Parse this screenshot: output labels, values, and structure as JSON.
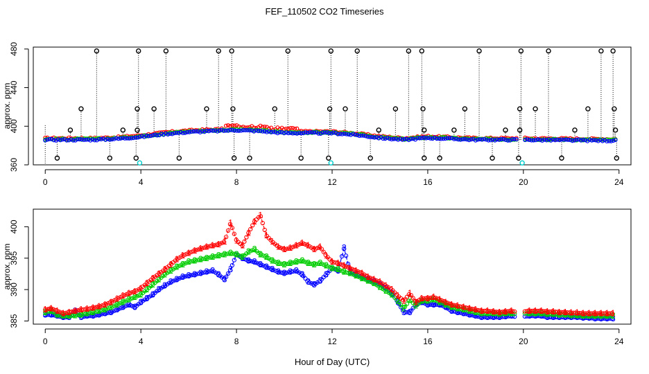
{
  "figure": {
    "title": "FEF_110502  CO2 Timeseries",
    "xlabel": "Hour of Day (UTC)"
  },
  "colors": {
    "series_1": "#ff0000",
    "series_2": "#00cd00",
    "series_3": "#0000ff",
    "spike": "#000000",
    "low": "#00cdcd"
  },
  "chart_data": [
    {
      "type": "scatter",
      "title": "",
      "xlabel": "",
      "ylabel": "approx. ppm",
      "xlim": [
        -0.5,
        24.5
      ],
      "ylim": [
        360,
        482
      ],
      "xticks": [
        0,
        4,
        8,
        12,
        16,
        20,
        24
      ],
      "yticks": [
        360,
        400,
        440,
        480
      ],
      "legend": "none",
      "baseline_anchors": [
        [
          0,
          386
        ],
        [
          2,
          386
        ],
        [
          3,
          387
        ],
        [
          4,
          389
        ],
        [
          5,
          392
        ],
        [
          6,
          394
        ],
        [
          7,
          395
        ],
        [
          8,
          396
        ],
        [
          9,
          395
        ],
        [
          10,
          393
        ],
        [
          11,
          393
        ],
        [
          12,
          393
        ],
        [
          13,
          391
        ],
        [
          14,
          388
        ],
        [
          15,
          386
        ],
        [
          16,
          388
        ],
        [
          17,
          387
        ],
        [
          18,
          386
        ],
        [
          19,
          386
        ],
        [
          19.75,
          386
        ],
        [
          20,
          386
        ],
        [
          24,
          385
        ]
      ],
      "series_offsets": [
        1.5,
        0.6,
        0
      ],
      "spikes_high": [
        2.15,
        3.9,
        5.05,
        7.25,
        7.8,
        10.15,
        11.95,
        13.05,
        15.2,
        15.75,
        18.15,
        19.9,
        21.05,
        23.25,
        23.75
      ],
      "spikes_mid": [
        1.5,
        3.85,
        4.55,
        6.75,
        7.85,
        9.6,
        11.9,
        12.55,
        14.65,
        15.8,
        17.55,
        19.85,
        20.5,
        22.7,
        23.8
      ],
      "spikes_low396": [
        1.05,
        3.25,
        3.85,
        13.95,
        15.85,
        17.1,
        19.25,
        19.85,
        22.15,
        23.85
      ],
      "spikes_down": [
        0.5,
        2.7,
        3.8,
        5.6,
        7.9,
        8.55,
        10.7,
        11.85,
        13.6,
        15.85,
        16.5,
        18.7,
        19.8,
        21.6,
        23.9
      ],
      "low_points": [
        [
          3.95,
          362
        ],
        [
          11.95,
          362
        ],
        [
          19.95,
          362
        ]
      ]
    },
    {
      "type": "line",
      "title": "",
      "xlabel": "Hour of Day (UTC)",
      "ylabel": "approx. ppm",
      "xlim": [
        -0.5,
        24.5
      ],
      "ylim": [
        384.5,
        402.8
      ],
      "xticks": [
        0,
        4,
        8,
        12,
        16,
        20,
        24
      ],
      "yticks": [
        385,
        390,
        395,
        400
      ],
      "legend": "none",
      "series": [
        {
          "label_glyph": "1",
          "x": [
            0.0,
            0.25,
            0.5,
            0.75,
            1.0,
            1.25,
            1.5,
            1.75,
            2.0,
            2.25,
            2.5,
            2.75,
            3.0,
            3.25,
            3.5,
            3.75,
            4.0,
            4.25,
            4.5,
            4.75,
            5.0,
            5.25,
            5.5,
            5.75,
            6.0,
            6.25,
            6.5,
            6.75,
            7.0,
            7.25,
            7.5,
            7.75,
            8.0,
            8.25,
            8.5,
            8.75,
            9.0,
            9.25,
            9.5,
            9.75,
            10.0,
            10.25,
            10.5,
            10.75,
            11.0,
            11.25,
            11.5,
            11.75,
            12.0,
            12.25,
            12.5,
            12.75,
            13.0,
            13.25,
            13.5,
            13.75,
            14.0,
            14.25,
            14.5,
            14.75,
            15.0,
            15.25,
            15.5,
            15.75,
            16.0,
            16.25,
            16.5,
            16.75,
            17.0,
            17.25,
            17.5,
            17.75,
            18.0,
            18.25,
            18.5,
            18.75,
            19.0,
            19.25,
            19.5,
            19.75,
            20.0,
            20.25,
            20.5,
            20.75,
            21.0,
            21.25,
            21.5,
            21.75,
            22.0,
            22.25,
            22.5,
            22.75,
            23.0,
            23.25,
            23.5,
            23.75
          ],
          "values": [
            386.8,
            387.0,
            386.6,
            386.2,
            386.4,
            386.6,
            386.8,
            386.9,
            387.1,
            387.3,
            387.6,
            388.0,
            388.5,
            389.0,
            389.4,
            389.7,
            390.2,
            391.0,
            391.8,
            392.5,
            393.2,
            394.0,
            394.8,
            395.4,
            395.8,
            396.2,
            396.5,
            396.8,
            397.0,
            397.2,
            397.6,
            400.6,
            397.8,
            397.0,
            399.0,
            400.8,
            401.8,
            398.6,
            397.6,
            396.8,
            396.4,
            396.6,
            397.0,
            397.4,
            397.0,
            396.4,
            396.8,
            395.4,
            394.4,
            394.2,
            393.8,
            393.4,
            393.0,
            392.6,
            392.0,
            391.6,
            391.2,
            390.6,
            390.0,
            389.0,
            388.2,
            389.4,
            388.0,
            388.6,
            388.6,
            388.8,
            388.4,
            388.0,
            387.6,
            387.4,
            387.2,
            387.0,
            386.8,
            386.6,
            386.6,
            386.5,
            386.4,
            386.5,
            386.6,
            386.4,
            386.5,
            386.6,
            386.6,
            386.6,
            386.5,
            386.5,
            386.4,
            386.4,
            386.3,
            386.3,
            386.2,
            386.2,
            386.2,
            386.2,
            386.2,
            386.2
          ]
        },
        {
          "label_glyph": "2",
          "x": [
            0.0,
            0.25,
            0.5,
            0.75,
            1.0,
            1.25,
            1.5,
            1.75,
            2.0,
            2.25,
            2.5,
            2.75,
            3.0,
            3.25,
            3.5,
            3.75,
            4.0,
            4.25,
            4.5,
            4.75,
            5.0,
            5.25,
            5.5,
            5.75,
            6.0,
            6.25,
            6.5,
            6.75,
            7.0,
            7.25,
            7.5,
            7.75,
            8.0,
            8.25,
            8.5,
            8.75,
            9.0,
            9.25,
            9.5,
            9.75,
            10.0,
            10.25,
            10.5,
            10.75,
            11.0,
            11.25,
            11.5,
            11.75,
            12.0,
            12.25,
            12.5,
            12.75,
            13.0,
            13.25,
            13.5,
            13.75,
            14.0,
            14.25,
            14.5,
            14.75,
            15.0,
            15.25,
            15.5,
            15.75,
            16.0,
            16.25,
            16.5,
            16.75,
            17.0,
            17.25,
            17.5,
            17.75,
            18.0,
            18.25,
            18.5,
            18.75,
            19.0,
            19.25,
            19.5,
            19.75,
            20.0,
            20.25,
            20.5,
            20.75,
            21.0,
            21.25,
            21.5,
            21.75,
            22.0,
            22.25,
            22.5,
            22.75,
            23.0,
            23.25,
            23.5,
            23.75
          ],
          "values": [
            386.4,
            386.6,
            386.0,
            385.8,
            385.8,
            385.9,
            386.0,
            386.2,
            386.4,
            386.6,
            386.8,
            387.2,
            387.6,
            388.0,
            388.4,
            388.8,
            389.2,
            390.0,
            390.8,
            391.6,
            392.4,
            393.0,
            393.6,
            394.0,
            394.4,
            394.6,
            394.8,
            395.0,
            395.2,
            395.4,
            395.6,
            395.8,
            395.6,
            395.2,
            396.0,
            396.4,
            395.6,
            395.2,
            394.6,
            394.2,
            394.0,
            394.2,
            394.4,
            394.6,
            394.2,
            394.0,
            394.2,
            393.8,
            393.4,
            393.2,
            392.8,
            392.6,
            392.2,
            391.8,
            391.4,
            391.0,
            390.4,
            389.8,
            389.2,
            388.2,
            387.0,
            388.4,
            387.4,
            388.2,
            388.2,
            388.4,
            388.0,
            387.6,
            387.2,
            387.0,
            386.8,
            386.6,
            386.4,
            386.2,
            386.2,
            386.2,
            386.1,
            386.2,
            386.2,
            386.1,
            386.2,
            386.2,
            386.2,
            386.2,
            386.1,
            386.1,
            386.0,
            386.0,
            385.9,
            385.9,
            385.8,
            385.8,
            385.8,
            385.8,
            385.8,
            385.8
          ]
        },
        {
          "label_glyph": "3",
          "x": [
            0.0,
            0.25,
            0.5,
            0.75,
            1.0,
            1.25,
            1.5,
            1.75,
            2.0,
            2.25,
            2.5,
            2.75,
            3.0,
            3.25,
            3.5,
            3.75,
            4.0,
            4.25,
            4.5,
            4.75,
            5.0,
            5.25,
            5.5,
            5.75,
            6.0,
            6.25,
            6.5,
            6.75,
            7.0,
            7.25,
            7.5,
            7.75,
            8.0,
            8.25,
            8.5,
            8.75,
            9.0,
            9.25,
            9.5,
            9.75,
            10.0,
            10.25,
            10.5,
            10.75,
            11.0,
            11.25,
            11.5,
            11.75,
            12.0,
            12.25,
            12.5,
            12.75,
            13.0,
            13.25,
            13.5,
            13.75,
            14.0,
            14.25,
            14.5,
            14.75,
            15.0,
            15.25,
            15.5,
            15.75,
            16.0,
            16.25,
            16.5,
            16.75,
            17.0,
            17.25,
            17.5,
            17.75,
            18.0,
            18.25,
            18.5,
            18.75,
            19.0,
            19.25,
            19.5,
            19.75,
            20.0,
            20.25,
            20.5,
            20.75,
            21.0,
            21.25,
            21.5,
            21.75,
            22.0,
            22.25,
            22.5,
            22.75,
            23.0,
            23.25,
            23.5,
            23.75
          ],
          "values": [
            386.0,
            386.0,
            385.8,
            385.6,
            385.6,
            386.6,
            385.6,
            385.8,
            385.8,
            386.0,
            386.2,
            386.4,
            386.8,
            387.2,
            387.6,
            387.2,
            388.0,
            388.6,
            389.2,
            390.0,
            390.6,
            391.2,
            391.6,
            392.0,
            392.2,
            392.4,
            392.6,
            392.8,
            393.0,
            392.4,
            391.6,
            393.2,
            395.6,
            395.0,
            394.6,
            394.4,
            394.0,
            393.6,
            393.2,
            392.8,
            392.6,
            392.8,
            393.0,
            392.4,
            391.2,
            390.8,
            391.4,
            392.4,
            393.4,
            393.0,
            396.6,
            392.8,
            392.4,
            392.0,
            391.6,
            391.2,
            390.8,
            390.2,
            389.4,
            388.0,
            386.4,
            386.4,
            387.6,
            388.0,
            387.6,
            387.6,
            387.6,
            387.2,
            386.6,
            386.4,
            386.2,
            386.0,
            385.8,
            385.6,
            385.6,
            385.6,
            385.6,
            385.7,
            385.8,
            385.6,
            385.7,
            385.8,
            385.8,
            385.8,
            385.6,
            385.6,
            385.6,
            385.6,
            385.6,
            385.6,
            385.5,
            385.5,
            385.4,
            385.4,
            385.4,
            385.4
          ]
        }
      ]
    }
  ]
}
